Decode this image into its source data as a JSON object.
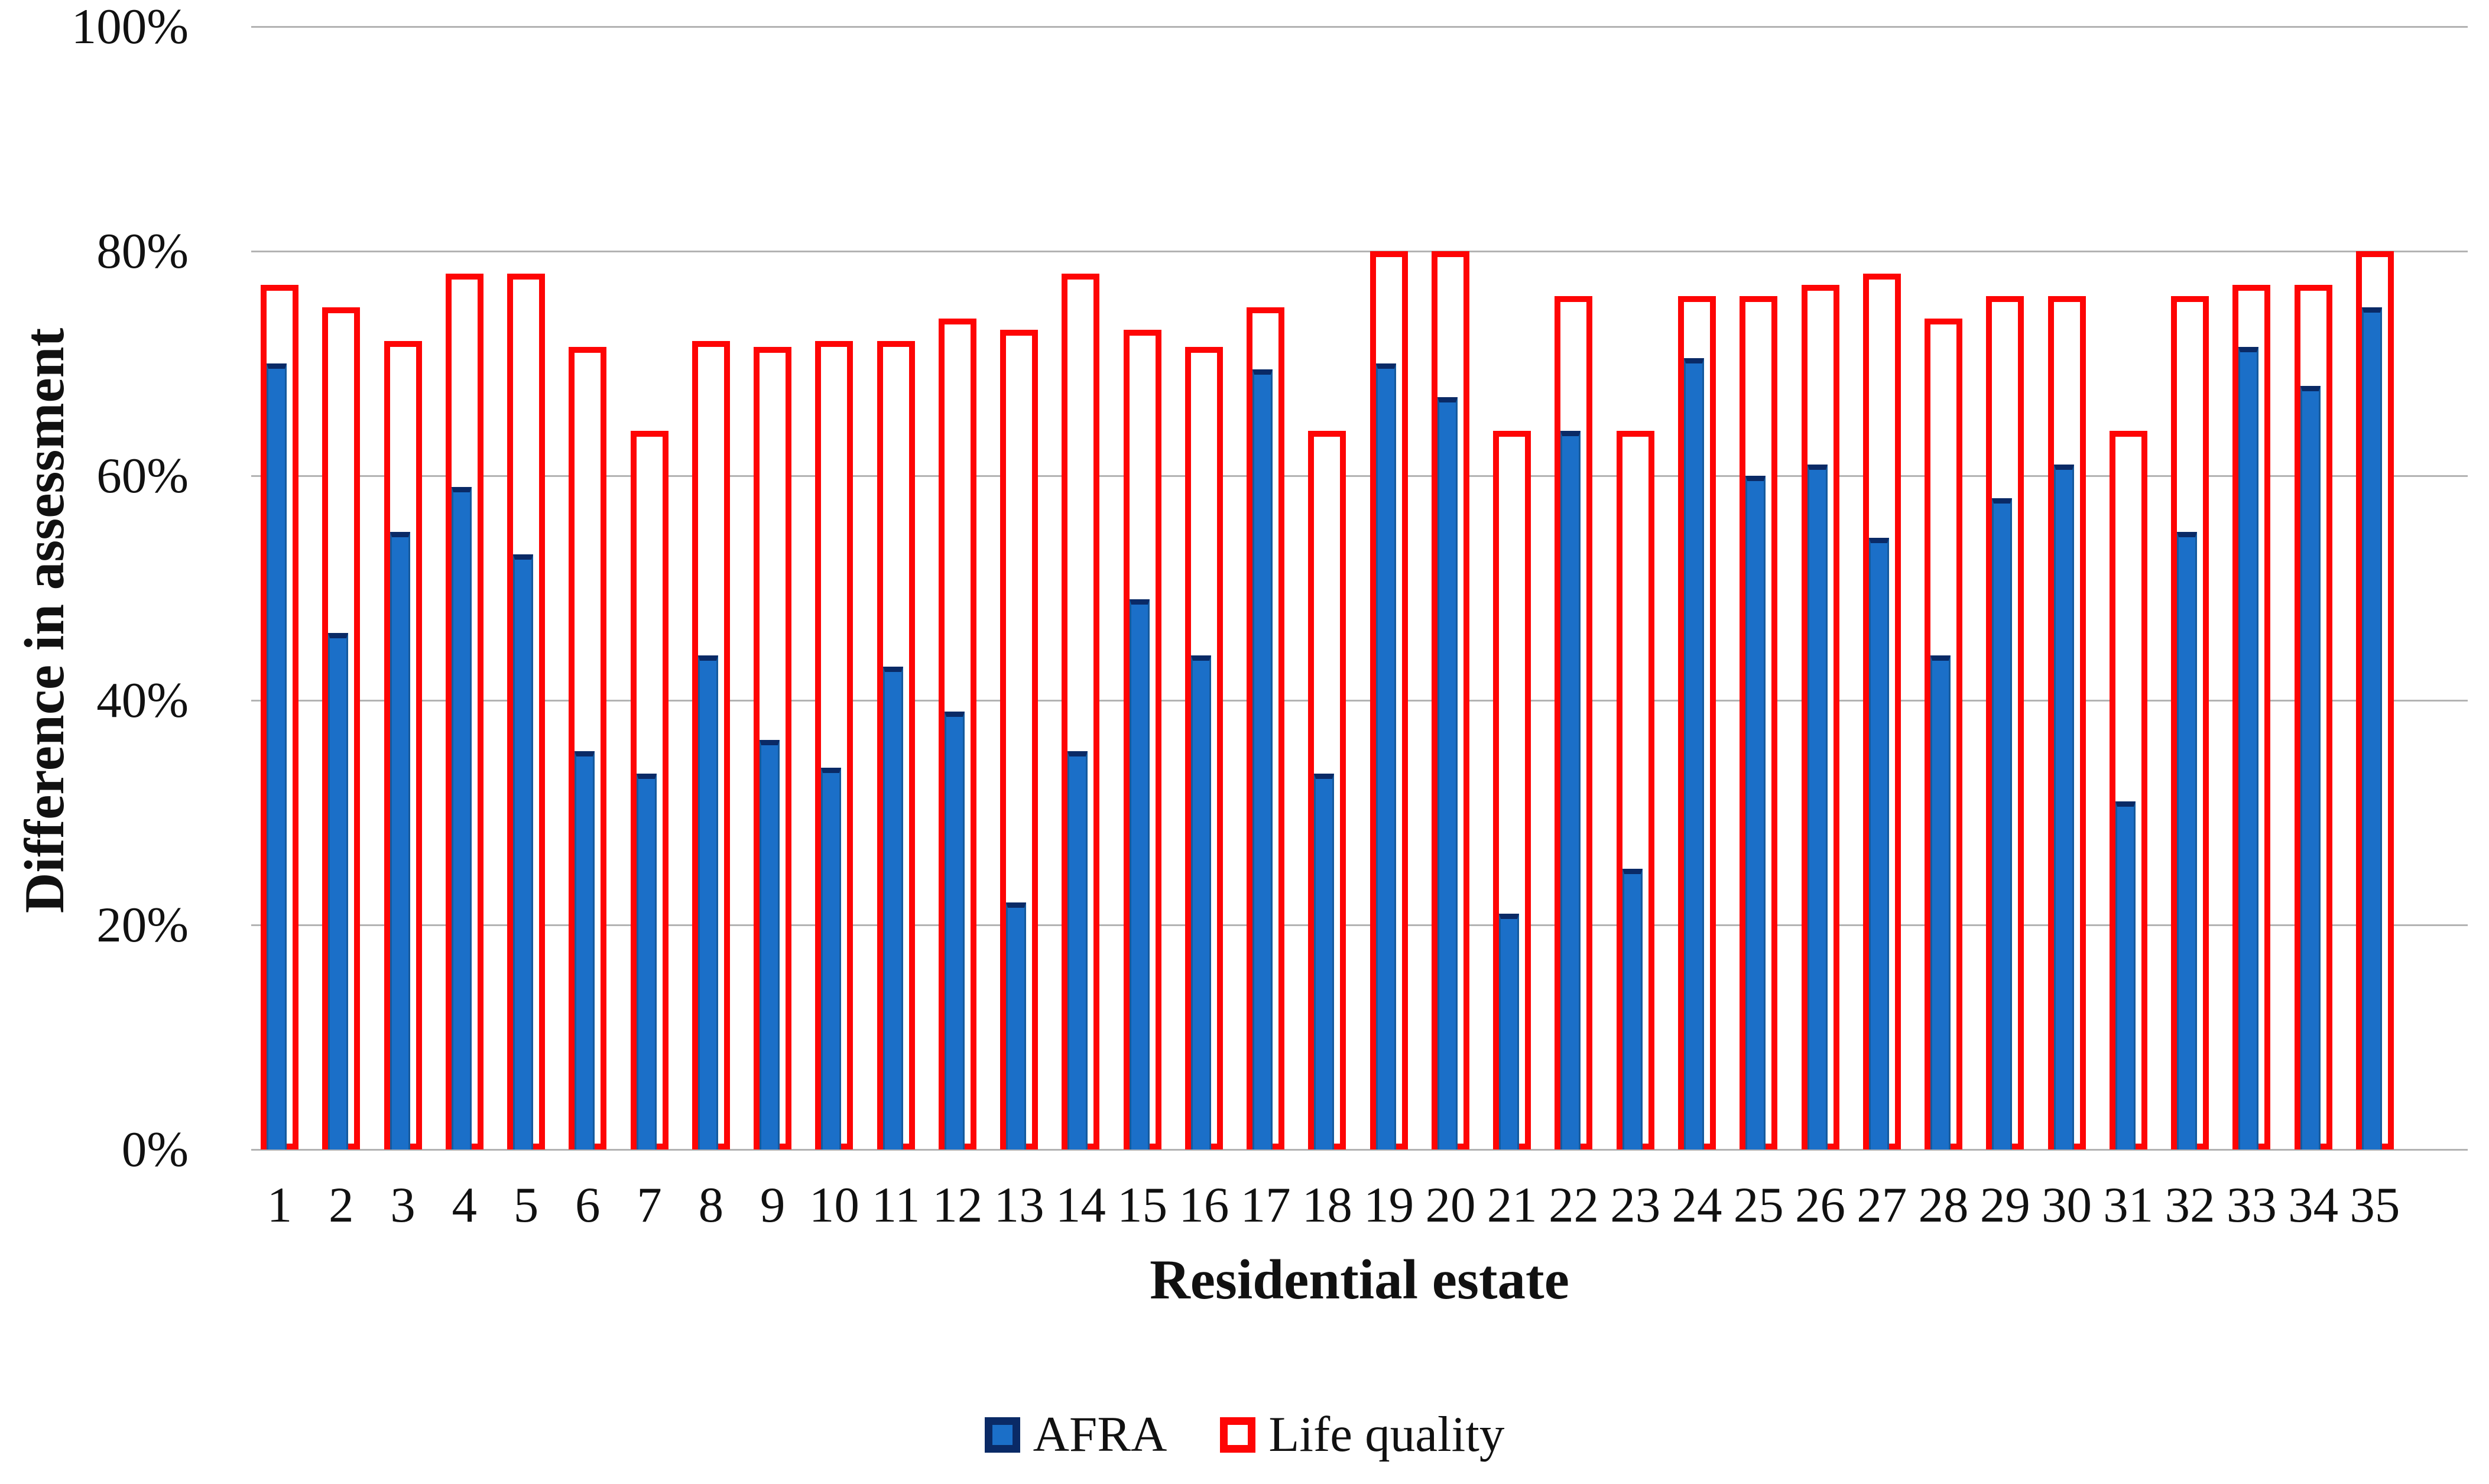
{
  "axes": {
    "y_title": "Difference in assessment",
    "x_title": "Residential estate"
  },
  "legend": {
    "afra_label": "AFRA",
    "life_quality_label": "Life quality"
  },
  "colors": {
    "afra_fill": "#1b6fc8",
    "afra_border": "#0a2a66",
    "life_quality_border": "#fe0505",
    "life_quality_fill": "#ffffff",
    "gridline": "#b3b3b3",
    "text": "#111111"
  },
  "chart_data": {
    "type": "bar",
    "title": "",
    "xlabel": "Residential estate",
    "ylabel": "Difference in assessment",
    "ylim": [
      0,
      100
    ],
    "yticks": [
      {
        "value": 0,
        "label": "0%"
      },
      {
        "value": 20,
        "label": "20%"
      },
      {
        "value": 40,
        "label": "40%"
      },
      {
        "value": 60,
        "label": "60%"
      },
      {
        "value": 80,
        "label": "80%"
      },
      {
        "value": 100,
        "label": "100%"
      }
    ],
    "grid": true,
    "legend_position": "bottom",
    "categories": [
      "1",
      "2",
      "3",
      "4",
      "5",
      "6",
      "7",
      "8",
      "9",
      "10",
      "11",
      "12",
      "13",
      "14",
      "15",
      "16",
      "17",
      "18",
      "19",
      "20",
      "21",
      "22",
      "23",
      "24",
      "25",
      "26",
      "27",
      "28",
      "29",
      "30",
      "31",
      "32",
      "33",
      "34",
      "35"
    ],
    "series": [
      {
        "name": "AFRA",
        "style": "filled-blue",
        "values": [
          70,
          46,
          55,
          59,
          53,
          35.5,
          33.5,
          44,
          36.5,
          34,
          43,
          39,
          22,
          35.5,
          49,
          44,
          69.5,
          33.5,
          70,
          67,
          21,
          64,
          25,
          70.5,
          60,
          61,
          54.5,
          44,
          58,
          61,
          31,
          55,
          71.5,
          68,
          75
        ]
      },
      {
        "name": "Life quality",
        "style": "red-outline",
        "values": [
          77,
          75,
          72,
          78,
          78,
          71.5,
          64,
          72,
          71.5,
          72,
          72,
          74,
          73,
          78,
          73,
          71.5,
          75,
          64,
          80,
          80,
          64,
          76,
          64,
          76,
          76,
          77,
          78,
          74,
          76,
          76,
          64,
          76,
          77,
          77,
          80
        ]
      }
    ]
  }
}
